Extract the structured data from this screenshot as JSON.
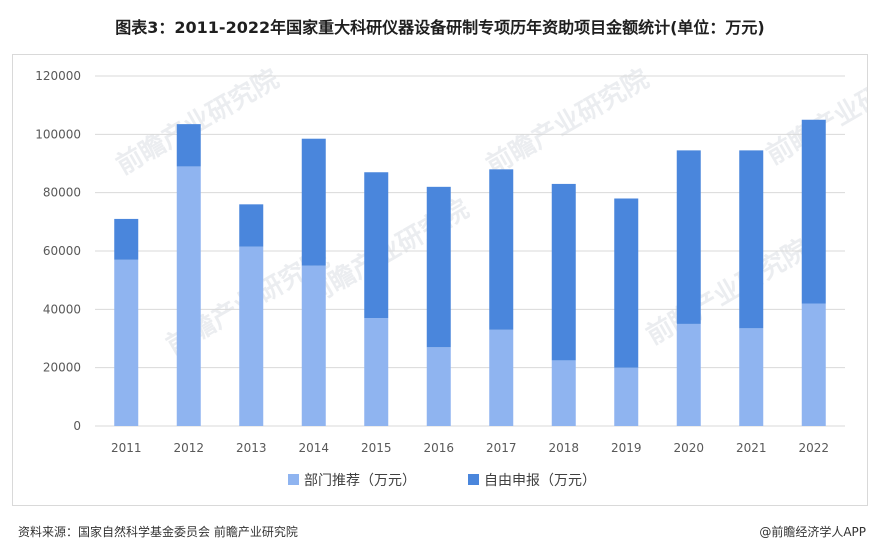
{
  "header": {
    "title": "图表3：2011-2022年国家重大科研仪器设备研制专项历年资助项目金额统计(单位：万元)"
  },
  "footer": {
    "source": "资料来源：国家自然科学基金委员会 前瞻产业研究院",
    "brand": "@前瞻经济学人APP"
  },
  "watermark": "前瞻产业研究院",
  "colors": {
    "series_1": "#8fb4f0",
    "series_2": "#4a86dc",
    "grid": "#d9d9d9"
  },
  "chart_data": {
    "type": "bar",
    "stacked": true,
    "categories": [
      "2011",
      "2012",
      "2013",
      "2014",
      "2015",
      "2016",
      "2017",
      "2018",
      "2019",
      "2020",
      "2021",
      "2022"
    ],
    "series": [
      {
        "name": "部门推荐（万元）",
        "values": [
          57000,
          89000,
          61500,
          55000,
          37000,
          27000,
          33000,
          22500,
          20000,
          35000,
          33500,
          42000
        ]
      },
      {
        "name": "自由申报（万元）",
        "values": [
          14000,
          14500,
          14500,
          43500,
          50000,
          55000,
          55000,
          60500,
          58000,
          59500,
          61000,
          63000
        ]
      }
    ],
    "ylim": [
      0,
      120000
    ],
    "yticks": [
      "0",
      "20000",
      "40000",
      "60000",
      "80000",
      "100000",
      "120000"
    ],
    "grid": true,
    "legend_position": "bottom"
  }
}
